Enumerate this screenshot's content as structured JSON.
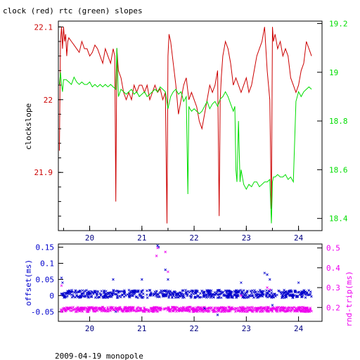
{
  "title": "clock (red) rtc (green) slopes",
  "footer": "2009-04-19 monopole",
  "colors": {
    "clock": "#cc0000",
    "rtc": "#00dd00",
    "offset": "#0000cc",
    "rndtrip": "#ee00ee",
    "axis": "#000000"
  },
  "chart_data": [
    {
      "type": "line",
      "title": "clock (red) rtc (green) slopes",
      "x_ticks": [
        "20",
        "21",
        "22",
        "23",
        "24"
      ],
      "xlim": [
        19.4,
        24.45
      ],
      "ylabel_left": "clockslope",
      "y_left_ticks": [
        "22.1",
        "22",
        "21.9"
      ],
      "y_left_tick_values": [
        22.1,
        22.0,
        21.9
      ],
      "ylim_left": [
        21.82,
        22.108
      ],
      "y_right_ticks": [
        "19.2",
        "19",
        "18.8",
        "18.6",
        "18.4"
      ],
      "y_right_tick_values": [
        19.2,
        19.0,
        18.8,
        18.6,
        18.4
      ],
      "ylim_right": [
        18.35,
        19.21
      ],
      "series": [
        {
          "name": "clock",
          "axis": "left",
          "x": [
            19.42,
            19.44,
            19.46,
            19.48,
            19.5,
            19.52,
            19.54,
            19.56,
            19.58,
            19.6,
            19.65,
            19.7,
            19.75,
            19.8,
            19.85,
            19.9,
            19.95,
            20.0,
            20.05,
            20.1,
            20.15,
            20.2,
            20.25,
            20.3,
            20.35,
            20.4,
            20.45,
            20.48,
            20.5,
            20.52,
            20.55,
            20.6,
            20.65,
            20.7,
            20.75,
            20.8,
            20.85,
            20.9,
            20.95,
            21.0,
            21.05,
            21.1,
            21.15,
            21.2,
            21.25,
            21.3,
            21.35,
            21.4,
            21.45,
            21.48,
            21.5,
            21.52,
            21.55,
            21.6,
            21.65,
            21.7,
            21.75,
            21.8,
            21.85,
            21.9,
            21.95,
            22.0,
            22.05,
            22.1,
            22.15,
            22.2,
            22.25,
            22.3,
            22.35,
            22.4,
            22.45,
            22.48,
            22.5,
            22.52,
            22.55,
            22.6,
            22.65,
            22.7,
            22.75,
            22.8,
            22.85,
            22.9,
            22.95,
            23.0,
            23.05,
            23.1,
            23.15,
            23.2,
            23.25,
            23.3,
            23.35,
            23.4,
            23.45,
            23.48,
            23.5,
            23.52,
            23.55,
            23.6,
            23.65,
            23.7,
            23.75,
            23.8,
            23.85,
            23.9,
            23.95,
            24.0,
            24.05,
            24.1,
            24.15,
            24.2,
            24.25
          ],
          "values": [
            21.93,
            22.08,
            22.1,
            22.07,
            22.1,
            22.08,
            22.09,
            22.06,
            22.08,
            22.085,
            22.08,
            22.075,
            22.07,
            22.065,
            22.08,
            22.07,
            22.07,
            22.06,
            22.065,
            22.075,
            22.07,
            22.06,
            22.05,
            22.07,
            22.06,
            22.05,
            22.07,
            22.06,
            21.86,
            22.07,
            22.04,
            22.03,
            22.01,
            22.0,
            22.01,
            22.0,
            22.02,
            22.01,
            22.02,
            22.02,
            22.01,
            22.02,
            22.0,
            22.01,
            22.02,
            22.01,
            22.015,
            22.0,
            22.01,
            21.83,
            22.06,
            22.09,
            22.08,
            22.05,
            22.02,
            21.98,
            22.0,
            22.02,
            22.03,
            22.0,
            22.01,
            22.0,
            21.99,
            21.97,
            21.96,
            21.98,
            22.0,
            22.02,
            22.01,
            22.02,
            22.04,
            21.84,
            22.0,
            22.03,
            22.06,
            22.08,
            22.07,
            22.05,
            22.02,
            22.03,
            22.02,
            22.01,
            22.02,
            22.03,
            22.01,
            22.02,
            22.04,
            22.06,
            22.07,
            22.08,
            22.1,
            22.04,
            22.0,
            21.85,
            22.1,
            22.08,
            22.09,
            22.07,
            22.08,
            22.06,
            22.07,
            22.06,
            22.03,
            22.02,
            22.01,
            22.02,
            22.04,
            22.05,
            22.08,
            22.07,
            22.06
          ]
        },
        {
          "name": "rtc",
          "axis": "right",
          "x": [
            19.42,
            19.44,
            19.46,
            19.48,
            19.5,
            19.55,
            19.6,
            19.65,
            19.7,
            19.75,
            19.8,
            19.85,
            19.9,
            19.95,
            20.0,
            20.05,
            20.1,
            20.15,
            20.2,
            20.25,
            20.3,
            20.35,
            20.4,
            20.45,
            20.5,
            20.52,
            20.55,
            20.6,
            20.65,
            20.7,
            20.75,
            20.8,
            20.85,
            20.9,
            20.95,
            21.0,
            21.05,
            21.1,
            21.15,
            21.2,
            21.25,
            21.3,
            21.35,
            21.4,
            21.45,
            21.5,
            21.55,
            21.6,
            21.65,
            21.7,
            21.75,
            21.8,
            21.85,
            21.88,
            21.9,
            21.92,
            21.95,
            22.0,
            22.05,
            22.1,
            22.15,
            22.2,
            22.25,
            22.3,
            22.35,
            22.4,
            22.45,
            22.5,
            22.55,
            22.6,
            22.65,
            22.7,
            22.75,
            22.78,
            22.8,
            22.82,
            22.85,
            22.88,
            22.9,
            22.95,
            23.0,
            23.05,
            23.1,
            23.15,
            23.2,
            23.25,
            23.3,
            23.35,
            23.4,
            23.45,
            23.48,
            23.5,
            23.52,
            23.55,
            23.6,
            23.65,
            23.7,
            23.75,
            23.8,
            23.85,
            23.9,
            23.95,
            24.0,
            24.05,
            24.1,
            24.15,
            24.2,
            24.25
          ],
          "values": [
            18.95,
            19.0,
            18.95,
            18.92,
            18.97,
            18.97,
            18.96,
            18.95,
            18.98,
            18.96,
            18.95,
            18.96,
            18.95,
            18.95,
            18.96,
            18.94,
            18.95,
            18.94,
            18.95,
            18.94,
            18.95,
            18.94,
            18.95,
            18.94,
            18.93,
            19.1,
            18.9,
            18.93,
            18.92,
            18.91,
            18.92,
            18.93,
            18.91,
            18.92,
            18.9,
            18.91,
            18.92,
            18.9,
            18.91,
            18.92,
            18.93,
            18.92,
            18.94,
            18.93,
            18.92,
            18.85,
            18.9,
            18.92,
            18.93,
            18.91,
            18.92,
            18.88,
            18.9,
            18.5,
            18.86,
            18.85,
            18.84,
            18.85,
            18.84,
            18.83,
            18.84,
            18.86,
            18.88,
            18.85,
            18.87,
            18.88,
            18.86,
            18.89,
            18.9,
            18.92,
            18.9,
            18.87,
            18.84,
            18.86,
            18.6,
            18.55,
            18.8,
            18.55,
            18.6,
            18.54,
            18.52,
            18.54,
            18.53,
            18.55,
            18.55,
            18.53,
            18.54,
            18.55,
            18.55,
            18.56,
            18.38,
            18.55,
            18.57,
            18.57,
            18.58,
            18.57,
            18.57,
            18.58,
            18.56,
            18.57,
            18.55,
            18.88,
            18.92,
            18.9,
            18.92,
            18.93,
            18.94,
            18.93
          ]
        }
      ]
    },
    {
      "type": "scatter",
      "x_ticks": [
        "20",
        "21",
        "22",
        "23",
        "24"
      ],
      "xlim": [
        19.4,
        24.45
      ],
      "ylabel_left": "offset(ms)",
      "y_left_ticks": [
        "0.15",
        "0.1",
        "0.05",
        "0",
        "-0.05"
      ],
      "y_left_tick_values": [
        0.15,
        0.1,
        0.05,
        0.0,
        -0.05
      ],
      "ylim_left": [
        -0.08,
        0.16
      ],
      "ylabel_right": "rnd-trip(ms)",
      "y_right_ticks": [
        "0.5",
        "0.4",
        "0.3",
        "0.2"
      ],
      "y_right_tick_values": [
        0.5,
        0.4,
        0.3,
        0.2
      ],
      "ylim_right": [
        0.13,
        0.52
      ],
      "series": [
        {
          "name": "offset",
          "axis": "left",
          "center": 0.005,
          "spread": 0.012
        },
        {
          "name": "rnd-trip",
          "axis": "right",
          "center": 0.19,
          "spread": 0.012
        }
      ],
      "outliers_offset": [
        [
          19.46,
          0.055
        ],
        [
          19.48,
          0.04
        ],
        [
          20.45,
          0.05
        ],
        [
          20.5,
          -0.05
        ],
        [
          21.0,
          0.05
        ],
        [
          21.3,
          0.155
        ],
        [
          21.32,
          0.15
        ],
        [
          21.45,
          0.08
        ],
        [
          21.5,
          0.05
        ],
        [
          22.2,
          -0.04
        ],
        [
          22.45,
          -0.06
        ],
        [
          22.9,
          0.04
        ],
        [
          23.35,
          0.07
        ],
        [
          23.4,
          0.065
        ],
        [
          23.45,
          0.05
        ],
        [
          23.5,
          -0.03
        ],
        [
          24.0,
          0.04
        ]
      ],
      "outliers_rndtrip": [
        [
          19.46,
          0.31
        ],
        [
          21.28,
          0.46
        ],
        [
          21.3,
          0.5
        ],
        [
          21.45,
          0.48
        ],
        [
          21.5,
          0.38
        ],
        [
          23.4,
          0.3
        ],
        [
          23.45,
          0.29
        ],
        [
          22.9,
          0.26
        ]
      ]
    }
  ]
}
